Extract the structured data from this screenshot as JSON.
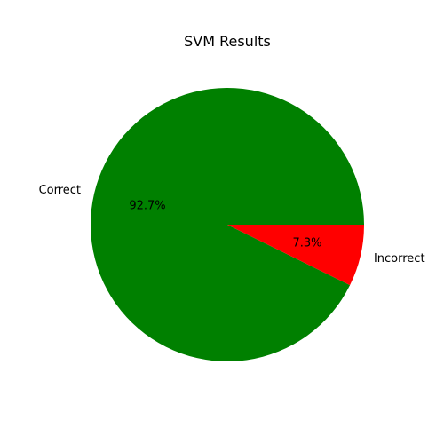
{
  "chart_data": {
    "type": "pie",
    "title": "SVM Results",
    "categories": [
      "Correct",
      "Incorrect"
    ],
    "values": [
      92.7,
      7.3
    ],
    "percent_labels": [
      "92.7%",
      "7.3%"
    ],
    "colors": [
      "#008000",
      "#ff0000"
    ],
    "start_angle_deg": 0,
    "direction": "counterclockwise"
  }
}
